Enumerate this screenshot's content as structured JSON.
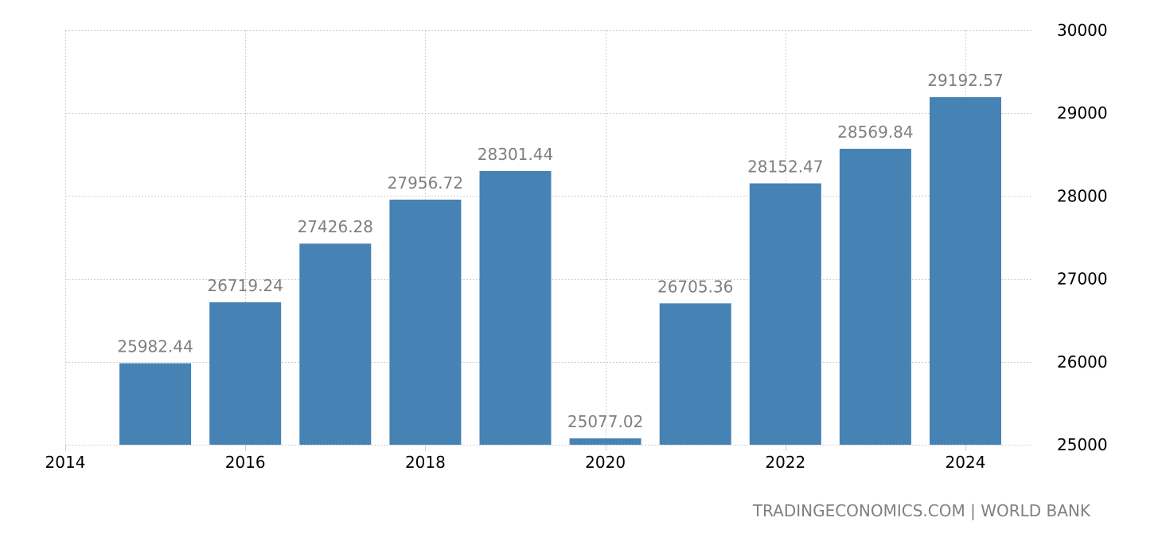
{
  "chart_data": {
    "type": "bar",
    "title": "",
    "xlabel": "",
    "ylabel": "",
    "categories": [
      "2015",
      "2016",
      "2017",
      "2018",
      "2019",
      "2020",
      "2021",
      "2022",
      "2023",
      "2024"
    ],
    "values": [
      25982.44,
      26719.24,
      27426.28,
      27956.72,
      28301.44,
      25077.02,
      26705.36,
      28152.47,
      28569.84,
      29192.57
    ],
    "value_labels": [
      "25982.44",
      "26719.24",
      "27426.28",
      "27956.72",
      "28301.44",
      "25077.02",
      "26705.36",
      "28152.47",
      "28569.84",
      "29192.57"
    ],
    "ylim": [
      25000,
      30000
    ],
    "yticks": [
      25000,
      26000,
      27000,
      28000,
      29000,
      30000
    ],
    "xticks": [
      "2014",
      "2016",
      "2018",
      "2020",
      "2022",
      "2024"
    ],
    "y_axis_position": "right",
    "grid": true,
    "bar_color": "#4682b4",
    "label_color": "#7f7f7f"
  },
  "source": "TRADINGECONOMICS.COM | WORLD BANK"
}
